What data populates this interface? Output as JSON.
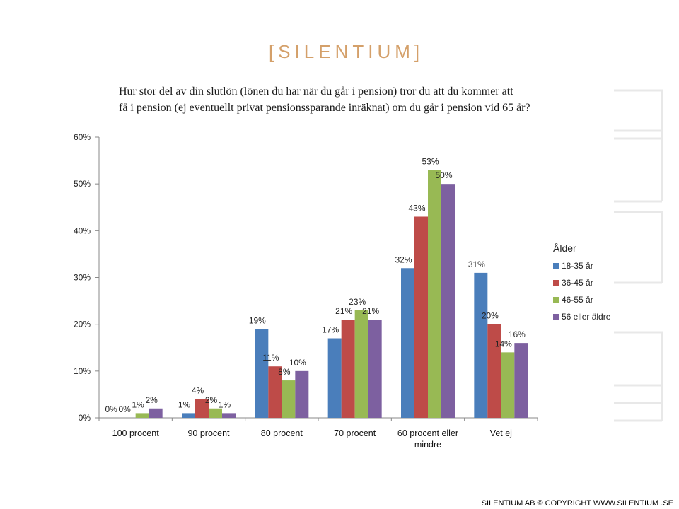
{
  "header": {
    "logo": "[SILENTIUM]",
    "question_line1": "Hur stor del av din slutlön (lönen du har när du går i pension) tror du att du kommer att",
    "question_line2": "få i pension (ej eventuellt privat pensionssparande inräknat) om du går i pension vid 65 år?"
  },
  "footer": {
    "copyright": "SILENTIUM AB © COPYRIGHT WWW.SILENTIUM .SE"
  },
  "chart_data": {
    "type": "bar",
    "title": "",
    "xlabel": "",
    "ylabel": "",
    "ylim": [
      0,
      60
    ],
    "yticks": [
      0,
      10,
      20,
      30,
      40,
      50,
      60
    ],
    "ytick_labels": [
      "0%",
      "10%",
      "20%",
      "30%",
      "40%",
      "50%",
      "60%"
    ],
    "categories": [
      "100 procent",
      "90 procent",
      "80 procent",
      "70 procent",
      "60 procent eller mindre",
      "Vet ej"
    ],
    "legend_title": "Ålder",
    "legend_position": "right",
    "grid": false,
    "series": [
      {
        "name": "18-35 år",
        "color": "#4a7ebb",
        "values": [
          0,
          1,
          19,
          17,
          32,
          31
        ]
      },
      {
        "name": "36-45 år",
        "color": "#be4b48",
        "values": [
          0,
          4,
          11,
          21,
          43,
          20
        ]
      },
      {
        "name": "46-55 år",
        "color": "#98b954",
        "values": [
          1,
          2,
          8,
          23,
          53,
          14
        ]
      },
      {
        "name": "56 eller äldre",
        "color": "#7d60a0",
        "values": [
          2,
          1,
          10,
          21,
          50,
          16
        ]
      }
    ],
    "value_labels": [
      [
        "0%",
        "1%",
        "19%",
        "17%",
        "32%",
        "31%"
      ],
      [
        "0%",
        "4%",
        "11%",
        "21%",
        "43%",
        "20%"
      ],
      [
        "1%",
        "2%",
        "8%",
        "23%",
        "53%",
        "14%"
      ],
      [
        "2%",
        "1%",
        "10%",
        "21%",
        "50%",
        "16%"
      ]
    ]
  }
}
